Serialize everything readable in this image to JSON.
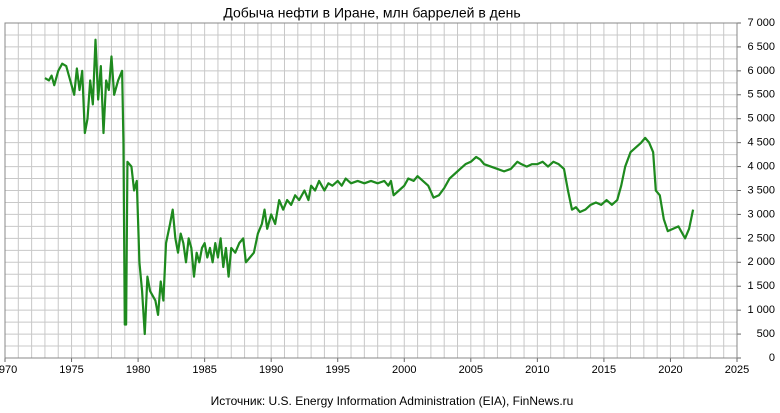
{
  "chart_data": {
    "type": "line",
    "title": "Добыча нефти в Иране, млн баррелей в день",
    "source": "Источник: U.S. Energy Information Administration (EIA), FinNews.ru",
    "grid": true,
    "xlim": [
      1970,
      2025
    ],
    "xticks": [
      1970,
      1975,
      1980,
      1985,
      1990,
      1995,
      2000,
      2005,
      2010,
      2015,
      2020,
      2025
    ],
    "ylim": [
      0,
      7000
    ],
    "yticks": [
      0,
      500,
      {
        "value": 1000,
        "label": "1 000"
      },
      {
        "value": 1500,
        "label": "1 500"
      },
      {
        "value": 2000,
        "label": "2 000"
      },
      {
        "value": 2500,
        "label": "2 500"
      },
      {
        "value": 3000,
        "label": "3 000"
      },
      {
        "value": 3500,
        "label": "3 500"
      },
      {
        "value": 4000,
        "label": "4 000"
      },
      {
        "value": 4500,
        "label": "4 500"
      },
      {
        "value": 5000,
        "label": "5 000"
      },
      {
        "value": 5500,
        "label": "5 500"
      },
      {
        "value": 6000,
        "label": "6 000"
      },
      {
        "value": 6500,
        "label": "6 500"
      },
      {
        "value": 7000,
        "label": "7 000"
      }
    ],
    "x": [
      1973.0,
      1973.3,
      1973.5,
      1973.7,
      1974.0,
      1974.3,
      1974.6,
      1974.8,
      1975.0,
      1975.2,
      1975.4,
      1975.6,
      1975.8,
      1976.0,
      1976.2,
      1976.4,
      1976.6,
      1976.8,
      1977.0,
      1977.2,
      1977.4,
      1977.6,
      1977.8,
      1978.0,
      1978.2,
      1978.5,
      1978.8,
      1978.9,
      1979.0,
      1979.1,
      1979.2,
      1979.5,
      1979.7,
      1979.9,
      1980.1,
      1980.3,
      1980.5,
      1980.7,
      1980.9,
      1981.1,
      1981.3,
      1981.5,
      1981.7,
      1981.9,
      1982.1,
      1982.4,
      1982.6,
      1982.8,
      1983.0,
      1983.2,
      1983.4,
      1983.6,
      1983.8,
      1984.0,
      1984.2,
      1984.4,
      1984.6,
      1984.8,
      1985.0,
      1985.2,
      1985.4,
      1985.6,
      1985.8,
      1986.0,
      1986.2,
      1986.4,
      1986.6,
      1986.8,
      1987.0,
      1987.3,
      1987.6,
      1987.9,
      1988.1,
      1988.4,
      1988.7,
      1989.0,
      1989.3,
      1989.5,
      1989.7,
      1990.0,
      1990.3,
      1990.6,
      1990.9,
      1991.2,
      1991.5,
      1991.8,
      1992.1,
      1992.5,
      1992.8,
      1993.0,
      1993.3,
      1993.6,
      1994.0,
      1994.3,
      1994.6,
      1995.0,
      1995.3,
      1995.6,
      1996.0,
      1996.5,
      1997.0,
      1997.5,
      1998.0,
      1998.5,
      1998.8,
      1999.0,
      1999.2,
      1999.6,
      2000.0,
      2000.3,
      2000.7,
      2001.0,
      2001.4,
      2001.8,
      2002.2,
      2002.6,
      2003.0,
      2003.4,
      2003.8,
      2004.2,
      2004.6,
      2005.0,
      2005.4,
      2005.7,
      2006.0,
      2006.5,
      2007.0,
      2007.5,
      2008.0,
      2008.5,
      2008.8,
      2009.2,
      2009.6,
      2010.0,
      2010.4,
      2010.8,
      2011.2,
      2011.6,
      2012.0,
      2012.3,
      2012.6,
      2012.9,
      2013.2,
      2013.6,
      2014.0,
      2014.4,
      2014.8,
      2015.2,
      2015.6,
      2016.0,
      2016.3,
      2016.6,
      2017.0,
      2017.4,
      2017.8,
      2018.1,
      2018.4,
      2018.7,
      2018.9,
      2019.2,
      2019.5,
      2019.8,
      2020.2,
      2020.6,
      2020.9,
      2021.1,
      2021.4,
      2021.7
    ],
    "series": [
      {
        "color": "#1e8a1e",
        "values": [
          5850,
          5800,
          5900,
          5700,
          6000,
          6150,
          6100,
          5900,
          5700,
          5500,
          6050,
          5600,
          6000,
          4700,
          5000,
          5800,
          5300,
          6650,
          5400,
          6100,
          4700,
          5800,
          5600,
          6300,
          5500,
          5800,
          6000,
          4500,
          700,
          700,
          4100,
          4000,
          3500,
          3700,
          2000,
          1400,
          500,
          1700,
          1400,
          1300,
          1200,
          900,
          1600,
          1200,
          2400,
          2800,
          3100,
          2500,
          2200,
          2600,
          2400,
          2000,
          2500,
          2300,
          1700,
          2200,
          2000,
          2300,
          2400,
          2100,
          2300,
          2000,
          2400,
          2100,
          2500,
          1900,
          2300,
          1700,
          2300,
          2200,
          2400,
          2500,
          2000,
          2100,
          2200,
          2600,
          2800,
          3100,
          2700,
          3000,
          2800,
          3300,
          3100,
          3300,
          3200,
          3400,
          3300,
          3500,
          3300,
          3600,
          3500,
          3700,
          3500,
          3650,
          3600,
          3700,
          3600,
          3750,
          3650,
          3700,
          3650,
          3700,
          3650,
          3700,
          3600,
          3700,
          3400,
          3500,
          3600,
          3750,
          3700,
          3800,
          3700,
          3600,
          3350,
          3400,
          3550,
          3750,
          3850,
          3950,
          4050,
          4100,
          4200,
          4150,
          4050,
          4000,
          3950,
          3900,
          3950,
          4100,
          4050,
          4000,
          4050,
          4050,
          4100,
          4000,
          4100,
          4050,
          3950,
          3500,
          3100,
          3150,
          3050,
          3100,
          3200,
          3250,
          3200,
          3300,
          3200,
          3300,
          3600,
          4000,
          4300,
          4400,
          4500,
          4600,
          4500,
          4300,
          3500,
          3400,
          2900,
          2650,
          2700,
          2750,
          2600,
          2500,
          2700,
          3100
        ]
      }
    ]
  }
}
